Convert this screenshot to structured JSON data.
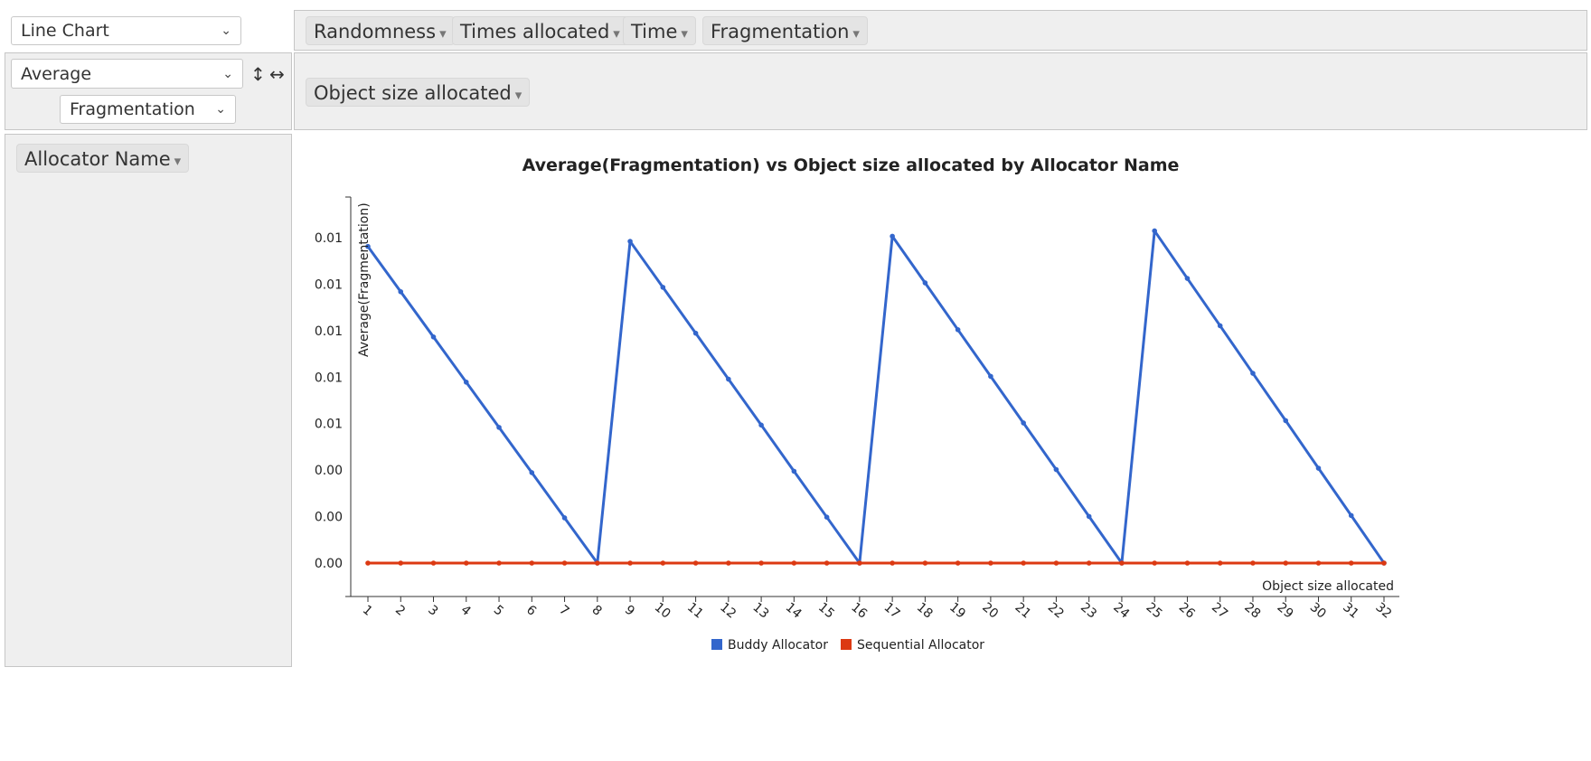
{
  "controls": {
    "renderer": "Line Chart",
    "aggregator": "Average",
    "aggregator_attr": "Fragmentation",
    "sort_rows_symbol": "↕",
    "sort_cols_symbol": "↔"
  },
  "unused_attrs": [
    {
      "label": "Randomness"
    },
    {
      "label": "Times allocated"
    },
    {
      "label": "Time"
    },
    {
      "label": "Fragmentation"
    }
  ],
  "col_attrs": [
    {
      "label": "Object size allocated"
    }
  ],
  "row_attrs": [
    {
      "label": "Allocator Name"
    }
  ],
  "dropdown_triangle": "▾",
  "chart_data": {
    "type": "line",
    "title": "Average(Fragmentation) vs Object size allocated by Allocator Name",
    "xlabel": "Object size allocated",
    "ylabel": "Average(Fragmentation)",
    "x": [
      1,
      2,
      3,
      4,
      5,
      6,
      7,
      8,
      9,
      10,
      11,
      12,
      13,
      14,
      15,
      16,
      17,
      18,
      19,
      20,
      21,
      22,
      23,
      24,
      25,
      26,
      27,
      28,
      29,
      30,
      31,
      32
    ],
    "y_tick_labels": [
      "0.00",
      "0.00",
      "0.00",
      "0.01",
      "0.01",
      "0.01",
      "0.01",
      "0.01"
    ],
    "grid": false,
    "legend_position": "bottom",
    "series": [
      {
        "name": "Buddy Allocator",
        "color": "#3366cc",
        "values": [
          0.01358,
          0.01164,
          0.0097,
          0.00776,
          0.00582,
          0.00388,
          0.00194,
          0.0,
          0.0138,
          0.01183,
          0.00986,
          0.00789,
          0.00592,
          0.00394,
          0.00197,
          0.0,
          0.01402,
          0.01202,
          0.01001,
          0.00801,
          0.00601,
          0.00401,
          0.002,
          0.0,
          0.01425,
          0.01221,
          0.01018,
          0.00814,
          0.00611,
          0.00407,
          0.00204,
          0.0
        ]
      },
      {
        "name": "Sequential Allocator",
        "color": "#dc3912",
        "values": [
          0,
          0,
          0,
          0,
          0,
          0,
          0,
          0,
          0,
          0,
          0,
          0,
          0,
          0,
          0,
          0,
          0,
          0,
          0,
          0,
          0,
          0,
          0,
          0,
          0,
          0,
          0,
          0,
          0,
          0,
          0,
          0
        ]
      }
    ]
  }
}
